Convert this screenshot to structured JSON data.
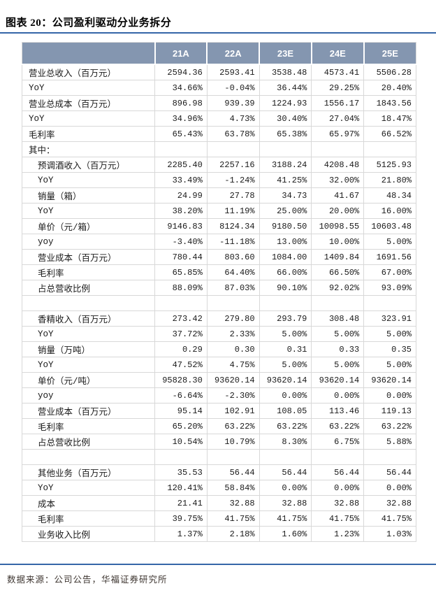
{
  "figure": {
    "title": "图表 20：公司盈利驱动分业务拆分",
    "source_note": "数据来源：公司公告，华福证券研究所"
  },
  "colors": {
    "accent_line": "#3566A8",
    "header_bg": "#8496B0",
    "header_text": "#FFFFFF",
    "border": "#D8D8D8",
    "source_text": "#3E3631"
  },
  "table": {
    "columns": [
      "21A",
      "22A",
      "23E",
      "24E",
      "25E"
    ],
    "rows": [
      {
        "label": "营业总收入（百万元）",
        "indent": 0,
        "values": [
          "2594.36",
          "2593.41",
          "3538.48",
          "4573.41",
          "5506.28"
        ]
      },
      {
        "label": "YoY",
        "indent": 0,
        "values": [
          "34.66%",
          "-0.04%",
          "36.44%",
          "29.25%",
          "20.40%"
        ]
      },
      {
        "label": "营业总成本（百万元）",
        "indent": 0,
        "values": [
          "896.98",
          "939.39",
          "1224.93",
          "1556.17",
          "1843.56"
        ]
      },
      {
        "label": "YoY",
        "indent": 0,
        "values": [
          "34.96%",
          "4.73%",
          "30.40%",
          "27.04%",
          "18.47%"
        ]
      },
      {
        "label": "毛利率",
        "indent": 0,
        "values": [
          "65.43%",
          "63.78%",
          "65.38%",
          "65.97%",
          "66.52%"
        ]
      },
      {
        "label": "其中：",
        "indent": 0,
        "values": [
          "",
          "",
          "",
          "",
          ""
        ]
      },
      {
        "label": "预调酒收入（百万元）",
        "indent": 1,
        "values": [
          "2285.40",
          "2257.16",
          "3188.24",
          "4208.48",
          "5125.93"
        ]
      },
      {
        "label": "YoY",
        "indent": 1,
        "values": [
          "33.49%",
          "-1.24%",
          "41.25%",
          "32.00%",
          "21.80%"
        ]
      },
      {
        "label": "销量（箱）",
        "indent": 1,
        "values": [
          "24.99",
          "27.78",
          "34.73",
          "41.67",
          "48.34"
        ]
      },
      {
        "label": "YoY",
        "indent": 1,
        "values": [
          "38.20%",
          "11.19%",
          "25.00%",
          "20.00%",
          "16.00%"
        ]
      },
      {
        "label": "单价（元/箱）",
        "indent": 1,
        "values": [
          "9146.83",
          "8124.34",
          "9180.50",
          "10098.55",
          "10603.48"
        ]
      },
      {
        "label": "yoy",
        "indent": 1,
        "values": [
          "-3.40%",
          "-11.18%",
          "13.00%",
          "10.00%",
          "5.00%"
        ]
      },
      {
        "label": "营业成本（百万元）",
        "indent": 1,
        "values": [
          "780.44",
          "803.60",
          "1084.00",
          "1409.84",
          "1691.56"
        ]
      },
      {
        "label": "毛利率",
        "indent": 1,
        "values": [
          "65.85%",
          "64.40%",
          "66.00%",
          "66.50%",
          "67.00%"
        ]
      },
      {
        "label": "占总营收比例",
        "indent": 1,
        "values": [
          "88.09%",
          "87.03%",
          "90.10%",
          "92.02%",
          "93.09%"
        ]
      },
      {
        "label": "",
        "indent": 0,
        "values": [
          "",
          "",
          "",
          "",
          ""
        ]
      },
      {
        "label": "香精收入（百万元）",
        "indent": 1,
        "values": [
          "273.42",
          "279.80",
          "293.79",
          "308.48",
          "323.91"
        ]
      },
      {
        "label": "YoY",
        "indent": 1,
        "values": [
          "37.72%",
          "2.33%",
          "5.00%",
          "5.00%",
          "5.00%"
        ]
      },
      {
        "label": "销量（万吨）",
        "indent": 1,
        "values": [
          "0.29",
          "0.30",
          "0.31",
          "0.33",
          "0.35"
        ]
      },
      {
        "label": "YoY",
        "indent": 1,
        "values": [
          "47.52%",
          "4.75%",
          "5.00%",
          "5.00%",
          "5.00%"
        ]
      },
      {
        "label": "单价（元/吨）",
        "indent": 1,
        "values": [
          "95828.30",
          "93620.14",
          "93620.14",
          "93620.14",
          "93620.14"
        ]
      },
      {
        "label": "yoy",
        "indent": 1,
        "values": [
          "-6.64%",
          "-2.30%",
          "0.00%",
          "0.00%",
          "0.00%"
        ]
      },
      {
        "label": "营业成本（百万元）",
        "indent": 1,
        "values": [
          "95.14",
          "102.91",
          "108.05",
          "113.46",
          "119.13"
        ]
      },
      {
        "label": "毛利率",
        "indent": 1,
        "values": [
          "65.20%",
          "63.22%",
          "63.22%",
          "63.22%",
          "63.22%"
        ]
      },
      {
        "label": "占总营收比例",
        "indent": 1,
        "values": [
          "10.54%",
          "10.79%",
          "8.30%",
          "6.75%",
          "5.88%"
        ]
      },
      {
        "label": "",
        "indent": 0,
        "values": [
          "",
          "",
          "",
          "",
          ""
        ]
      },
      {
        "label": "其他业务（百万元）",
        "indent": 1,
        "values": [
          "35.53",
          "56.44",
          "56.44",
          "56.44",
          "56.44"
        ]
      },
      {
        "label": "YoY",
        "indent": 1,
        "values": [
          "120.41%",
          "58.84%",
          "0.00%",
          "0.00%",
          "0.00%"
        ]
      },
      {
        "label": "成本",
        "indent": 1,
        "values": [
          "21.41",
          "32.88",
          "32.88",
          "32.88",
          "32.88"
        ]
      },
      {
        "label": "毛利率",
        "indent": 1,
        "values": [
          "39.75%",
          "41.75%",
          "41.75%",
          "41.75%",
          "41.75%"
        ]
      },
      {
        "label": "业务收入比例",
        "indent": 1,
        "values": [
          "1.37%",
          "2.18%",
          "1.60%",
          "1.23%",
          "1.03%"
        ]
      }
    ]
  }
}
